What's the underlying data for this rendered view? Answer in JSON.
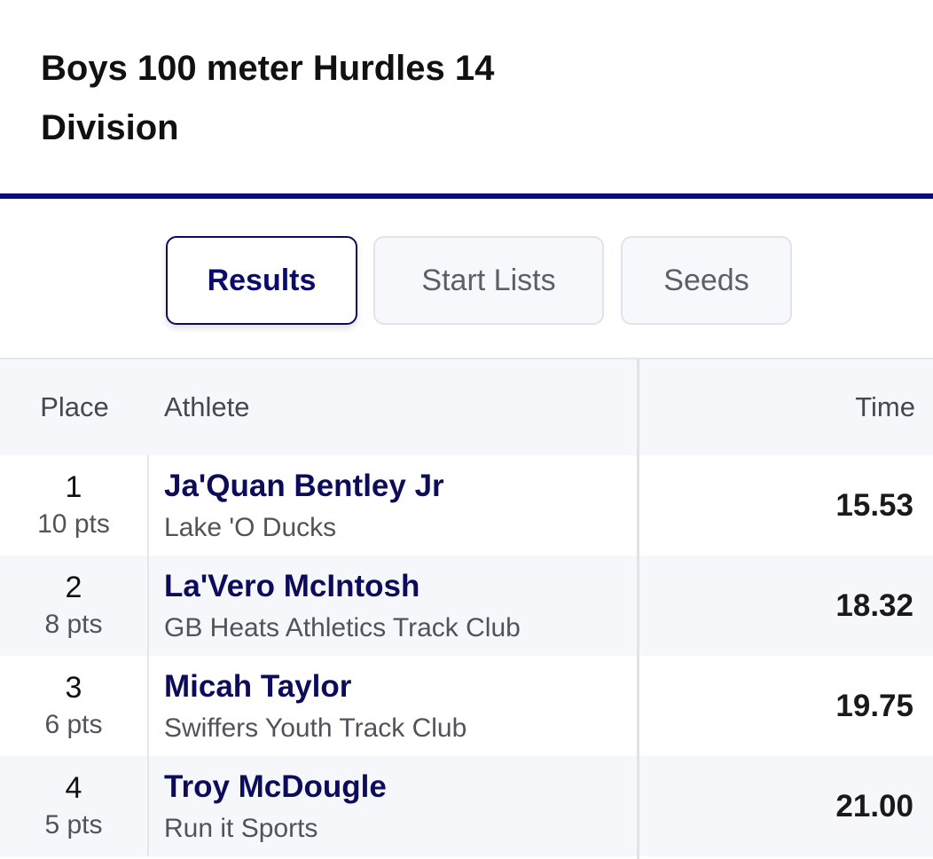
{
  "event": {
    "title": "Boys 100 meter Hurdles 14 Division"
  },
  "tabs": [
    {
      "label": "Results",
      "active": true
    },
    {
      "label": "Start Lists",
      "active": false
    },
    {
      "label": "Seeds",
      "active": false
    }
  ],
  "table": {
    "headers": {
      "place": "Place",
      "athlete": "Athlete",
      "time": "Time"
    },
    "rows": [
      {
        "place": "1",
        "points": "10 pts",
        "athlete": "Ja'Quan Bentley Jr",
        "team": "Lake 'O Ducks",
        "time": "15.53"
      },
      {
        "place": "2",
        "points": "8 pts",
        "athlete": "La'Vero McIntosh",
        "team": "GB Heats Athletics Track Club",
        "time": "18.32"
      },
      {
        "place": "3",
        "points": "6 pts",
        "athlete": "Micah Taylor",
        "team": "Swiffers Youth Track Club",
        "time": "19.75"
      },
      {
        "place": "4",
        "points": "5 pts",
        "athlete": "Troy McDougle",
        "team": "Run it Sports",
        "time": "21.00"
      }
    ]
  },
  "colors": {
    "accent": "#0a0a78",
    "athlete_link": "#0c0c5a",
    "row_alt": "#f6f7fb"
  }
}
